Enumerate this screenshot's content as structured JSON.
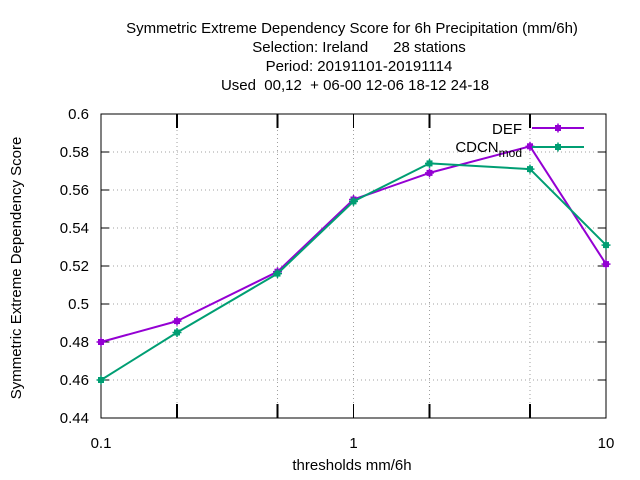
{
  "chart_data": {
    "type": "line",
    "title_lines": [
      "Symmetric Extreme Dependency Score  for 6h Precipitation (mm/6h)",
      "Selection: Ireland      28 stations",
      "Period: 20191101-20191114",
      "Used  00,12  + 06-00 12-06 18-12 24-18"
    ],
    "xlabel": "thresholds mm/6h",
    "ylabel": "Symmetric Extreme Dependency Score",
    "x_scale": "log",
    "xlim": [
      0.1,
      10
    ],
    "ylim": [
      0.44,
      0.6
    ],
    "x_tick_labels": [
      "0.1",
      "1",
      "10"
    ],
    "y_tick_labels": [
      "0.44",
      "0.46",
      "0.48",
      "0.5",
      "0.52",
      "0.54",
      "0.56",
      "0.58",
      "0.6"
    ],
    "grid": true,
    "legend_position": "top-right",
    "x": [
      0.1,
      0.2,
      0.5,
      1,
      2,
      5,
      10
    ],
    "series": [
      {
        "name": "DEF",
        "color": "#9400d3",
        "values": [
          0.48,
          0.491,
          0.517,
          0.555,
          0.569,
          0.583,
          0.521
        ]
      },
      {
        "name": "CDCN_mod",
        "color": "#009e73",
        "values": [
          0.46,
          0.485,
          0.516,
          0.554,
          0.574,
          0.571,
          0.531
        ]
      }
    ]
  }
}
